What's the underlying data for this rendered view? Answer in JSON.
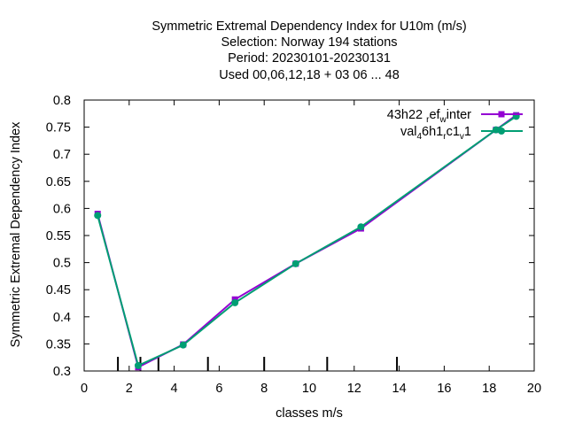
{
  "chart_data": {
    "type": "line",
    "title_lines": [
      "Symmetric Extremal Dependency Index  for U10m (m/s)",
      "Selection: Norway    194 stations",
      "Period: 20230101-20230131",
      "Used  00,06,12,18  + 03 06 ... 48"
    ],
    "xlabel": "classes m/s",
    "ylabel": "Symmetric Extremal Dependency Index",
    "xlim": [
      0,
      20
    ],
    "ylim": [
      0.3,
      0.8
    ],
    "x_ticks": [
      0,
      2,
      4,
      6,
      8,
      10,
      12,
      14,
      16,
      18,
      20
    ],
    "x_tick_labels": [
      "0",
      "2",
      "4",
      "6",
      "8",
      "10",
      "12",
      "14",
      "16",
      "18",
      "20"
    ],
    "y_ticks": [
      0.3,
      0.35,
      0.4,
      0.45,
      0.5,
      0.55,
      0.6,
      0.65,
      0.7,
      0.75,
      0.8
    ],
    "y_tick_labels": [
      "0.3",
      "0.35",
      "0.4",
      "0.45",
      "0.5",
      "0.55",
      "0.6",
      "0.65",
      "0.7",
      "0.75",
      "0.8"
    ],
    "class_boundaries": [
      1.5,
      2.5,
      3.3,
      5.5,
      8.0,
      10.8,
      13.9
    ],
    "grid": false,
    "legend_position": "top-right",
    "series": [
      {
        "name": "43h22_ref_winter",
        "legend_parts": [
          [
            "43h22 ",
            false
          ],
          [
            "r",
            true
          ],
          [
            "ef",
            false
          ],
          [
            "w",
            true
          ],
          [
            "inter",
            false
          ]
        ],
        "color": "#9400d3",
        "marker": "square",
        "x": [
          0.6,
          2.4,
          4.4,
          6.7,
          9.4,
          12.3,
          18.3,
          19.2
        ],
        "y": [
          0.59,
          0.307,
          0.349,
          0.432,
          0.498,
          0.563,
          0.745,
          0.772
        ]
      },
      {
        "name": "val_46h1_rc1_v1",
        "legend_parts": [
          [
            "val",
            false
          ],
          [
            "4",
            true
          ],
          [
            "6h1",
            false
          ],
          [
            "r",
            true
          ],
          [
            "c1",
            false
          ],
          [
            "v",
            true
          ],
          [
            "1",
            false
          ]
        ],
        "color": "#009e73",
        "marker": "circle",
        "x": [
          0.6,
          2.4,
          4.4,
          6.7,
          9.4,
          12.3,
          18.3,
          19.2
        ],
        "y": [
          0.587,
          0.31,
          0.348,
          0.426,
          0.498,
          0.566,
          0.745,
          0.77
        ]
      }
    ]
  }
}
